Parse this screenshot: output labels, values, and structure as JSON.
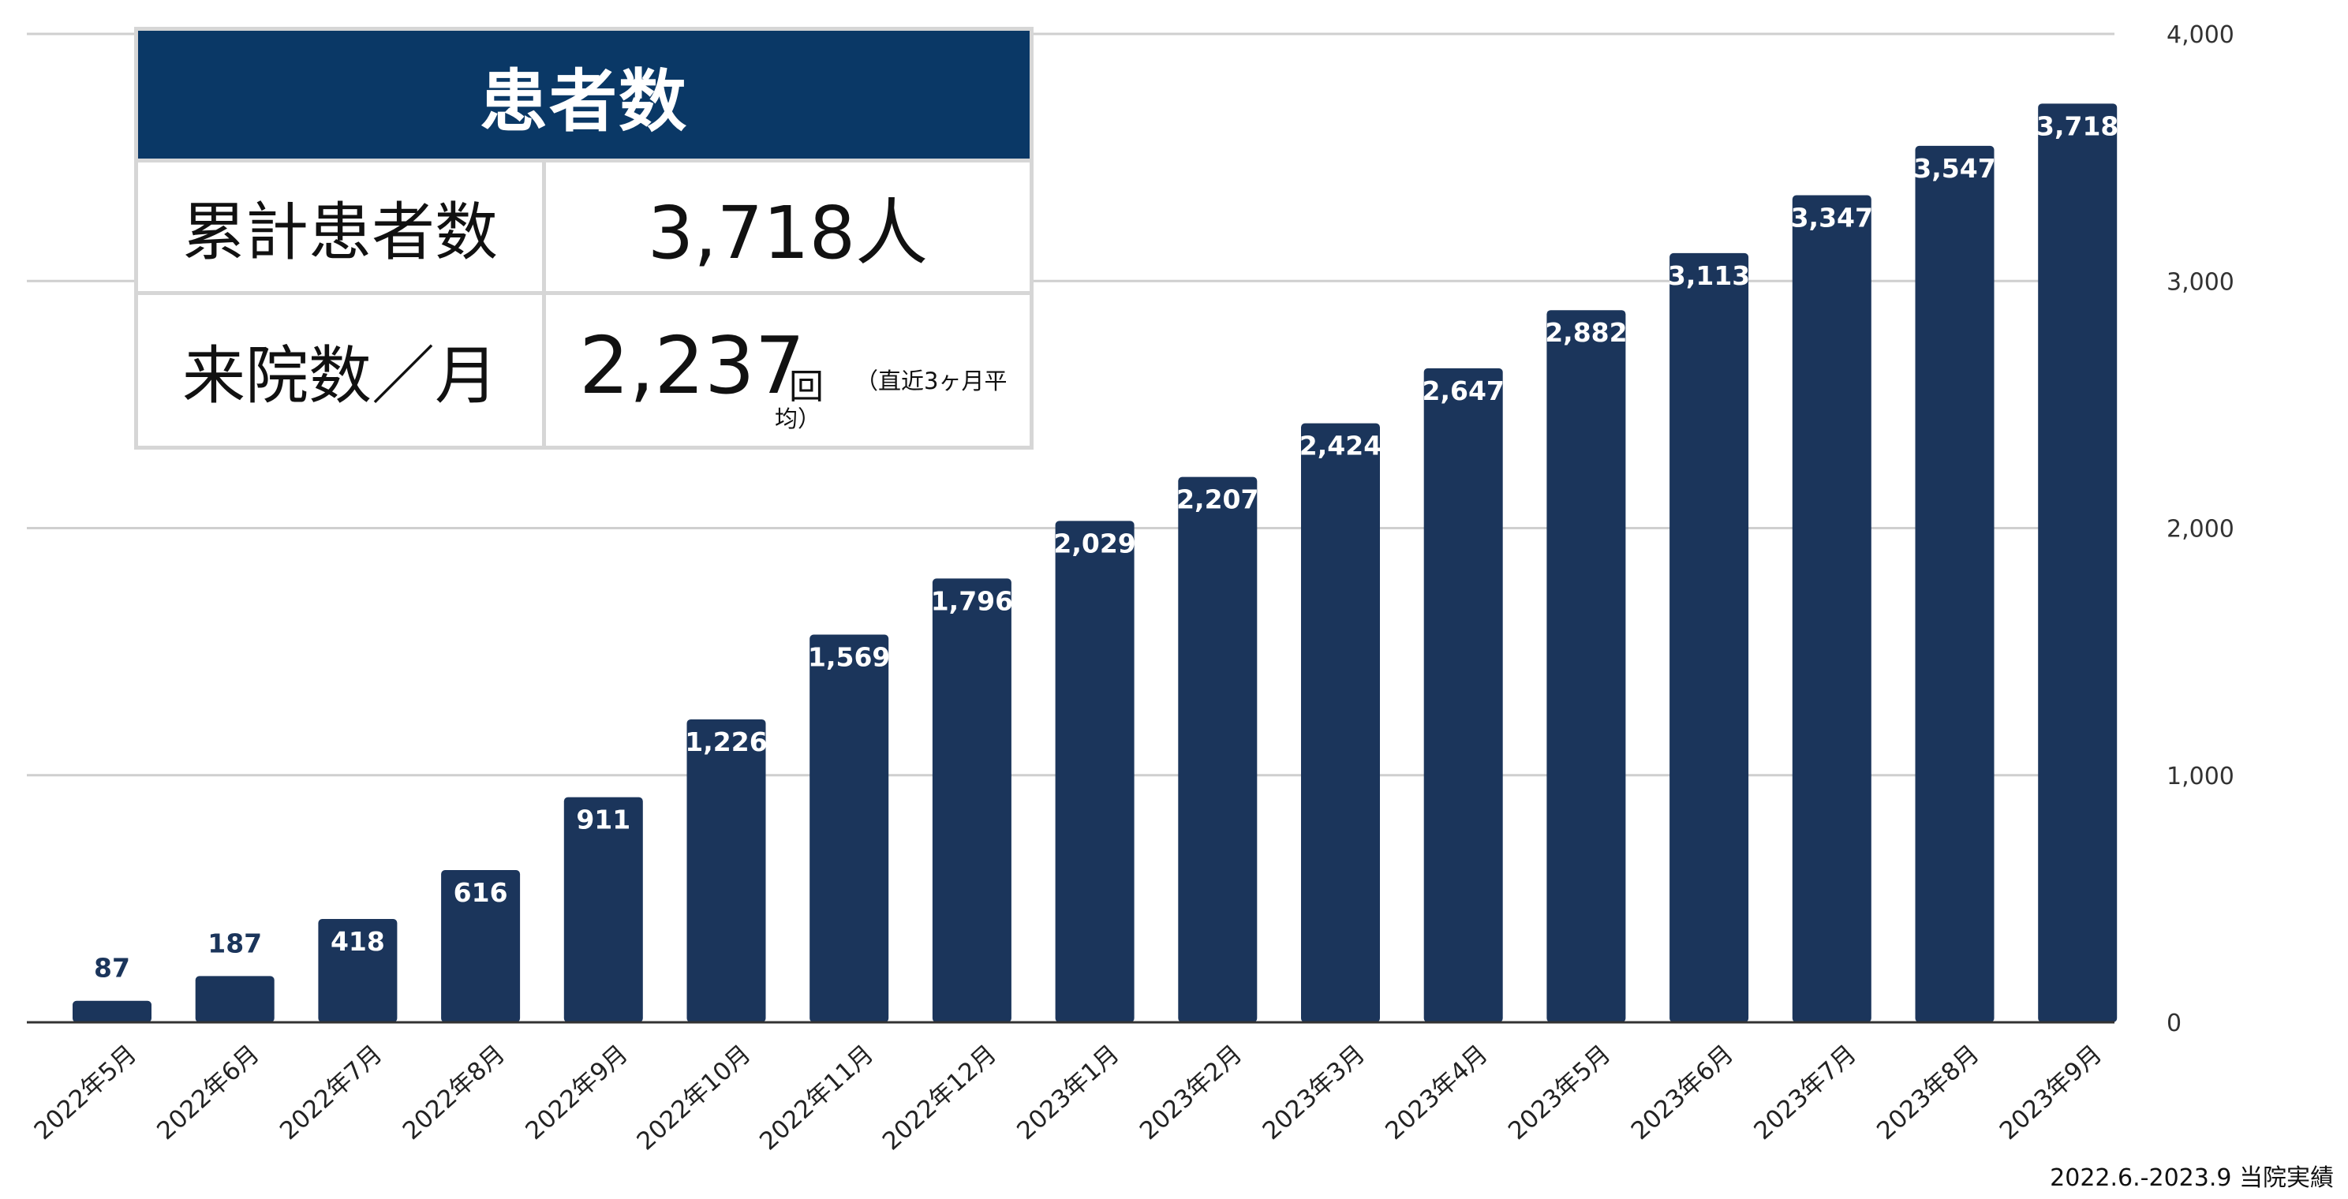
{
  "info_box": {
    "title": "患者数",
    "rows": [
      {
        "label": "累計患者数",
        "value": "3,718人"
      },
      {
        "label": "来院数／月",
        "value": "2,237",
        "unit": "回",
        "note_line1": "（直近3ヶ月平",
        "note_line2": "均）"
      }
    ]
  },
  "footnote": "2022.6.-2023.9 当院実績",
  "chart_data": {
    "type": "bar",
    "categories": [
      "2022年5月",
      "2022年6月",
      "2022年7月",
      "2022年8月",
      "2022年9月",
      "2022年10月",
      "2022年11月",
      "2022年12月",
      "2023年1月",
      "2023年2月",
      "2023年3月",
      "2023年4月",
      "2023年5月",
      "2023年6月",
      "2023年7月",
      "2023年8月",
      "2023年9月"
    ],
    "values": [
      87,
      187,
      418,
      616,
      911,
      1226,
      1569,
      1796,
      2029,
      2207,
      2424,
      2647,
      2882,
      3113,
      3347,
      3547,
      3718
    ],
    "value_labels": [
      "87",
      "187",
      "418",
      "616",
      "911",
      "1,226",
      "1,569",
      "1,796",
      "2,029",
      "2,207",
      "2,424",
      "2,647",
      "2,882",
      "3,113",
      "3,347",
      "3,547",
      "3,718"
    ],
    "yticks": [
      0,
      1000,
      2000,
      3000,
      4000
    ],
    "ytick_labels": [
      "0",
      "1,000",
      "2,000",
      "3,000",
      "4,000"
    ],
    "ylim": [
      0,
      4000
    ],
    "y_axis_position": "right",
    "grid": true,
    "bar_color": "#1b355b",
    "gridline_color": "#cfcfcf"
  }
}
